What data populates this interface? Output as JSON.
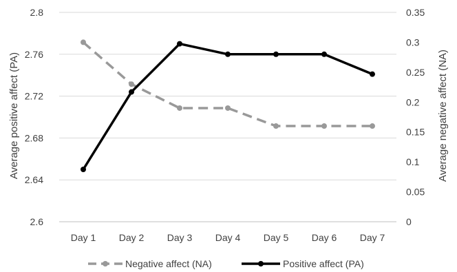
{
  "chart_data": {
    "type": "line",
    "categories": [
      "Day 1",
      "Day 2",
      "Day 3",
      "Day 4",
      "Day 5",
      "Day 6",
      "Day 7"
    ],
    "y_left": {
      "label": "Average positive affect (PA)",
      "range": [
        2.6,
        2.8
      ],
      "ticks": [
        "2.6",
        "2.64",
        "2.68",
        "2.72",
        "2.76",
        "2.8"
      ],
      "tick_values": [
        2.6,
        2.64,
        2.68,
        2.72,
        2.76,
        2.8
      ]
    },
    "y_right": {
      "label": "Average negative affect (NA)",
      "range": [
        0,
        0.35
      ],
      "ticks": [
        "0",
        "0.05",
        "0.1",
        "0.15",
        "0.2",
        "0.25",
        "0.3",
        "0.35"
      ],
      "tick_values": [
        0,
        0.05,
        0.1,
        0.15,
        0.2,
        0.25,
        0.3,
        0.35
      ]
    },
    "series": [
      {
        "name": "Negative affect (NA)",
        "axis": "right",
        "values": [
          0.3,
          0.23,
          0.19,
          0.19,
          0.16,
          0.16,
          0.16
        ],
        "color": "#999999",
        "dashed": true
      },
      {
        "name": "Positive affect (PA)",
        "axis": "left",
        "values": [
          2.65,
          2.724,
          2.77,
          2.76,
          2.76,
          2.76,
          2.741
        ],
        "color": "#000000",
        "dashed": false
      }
    ],
    "grid": true,
    "legend_position": "bottom"
  }
}
